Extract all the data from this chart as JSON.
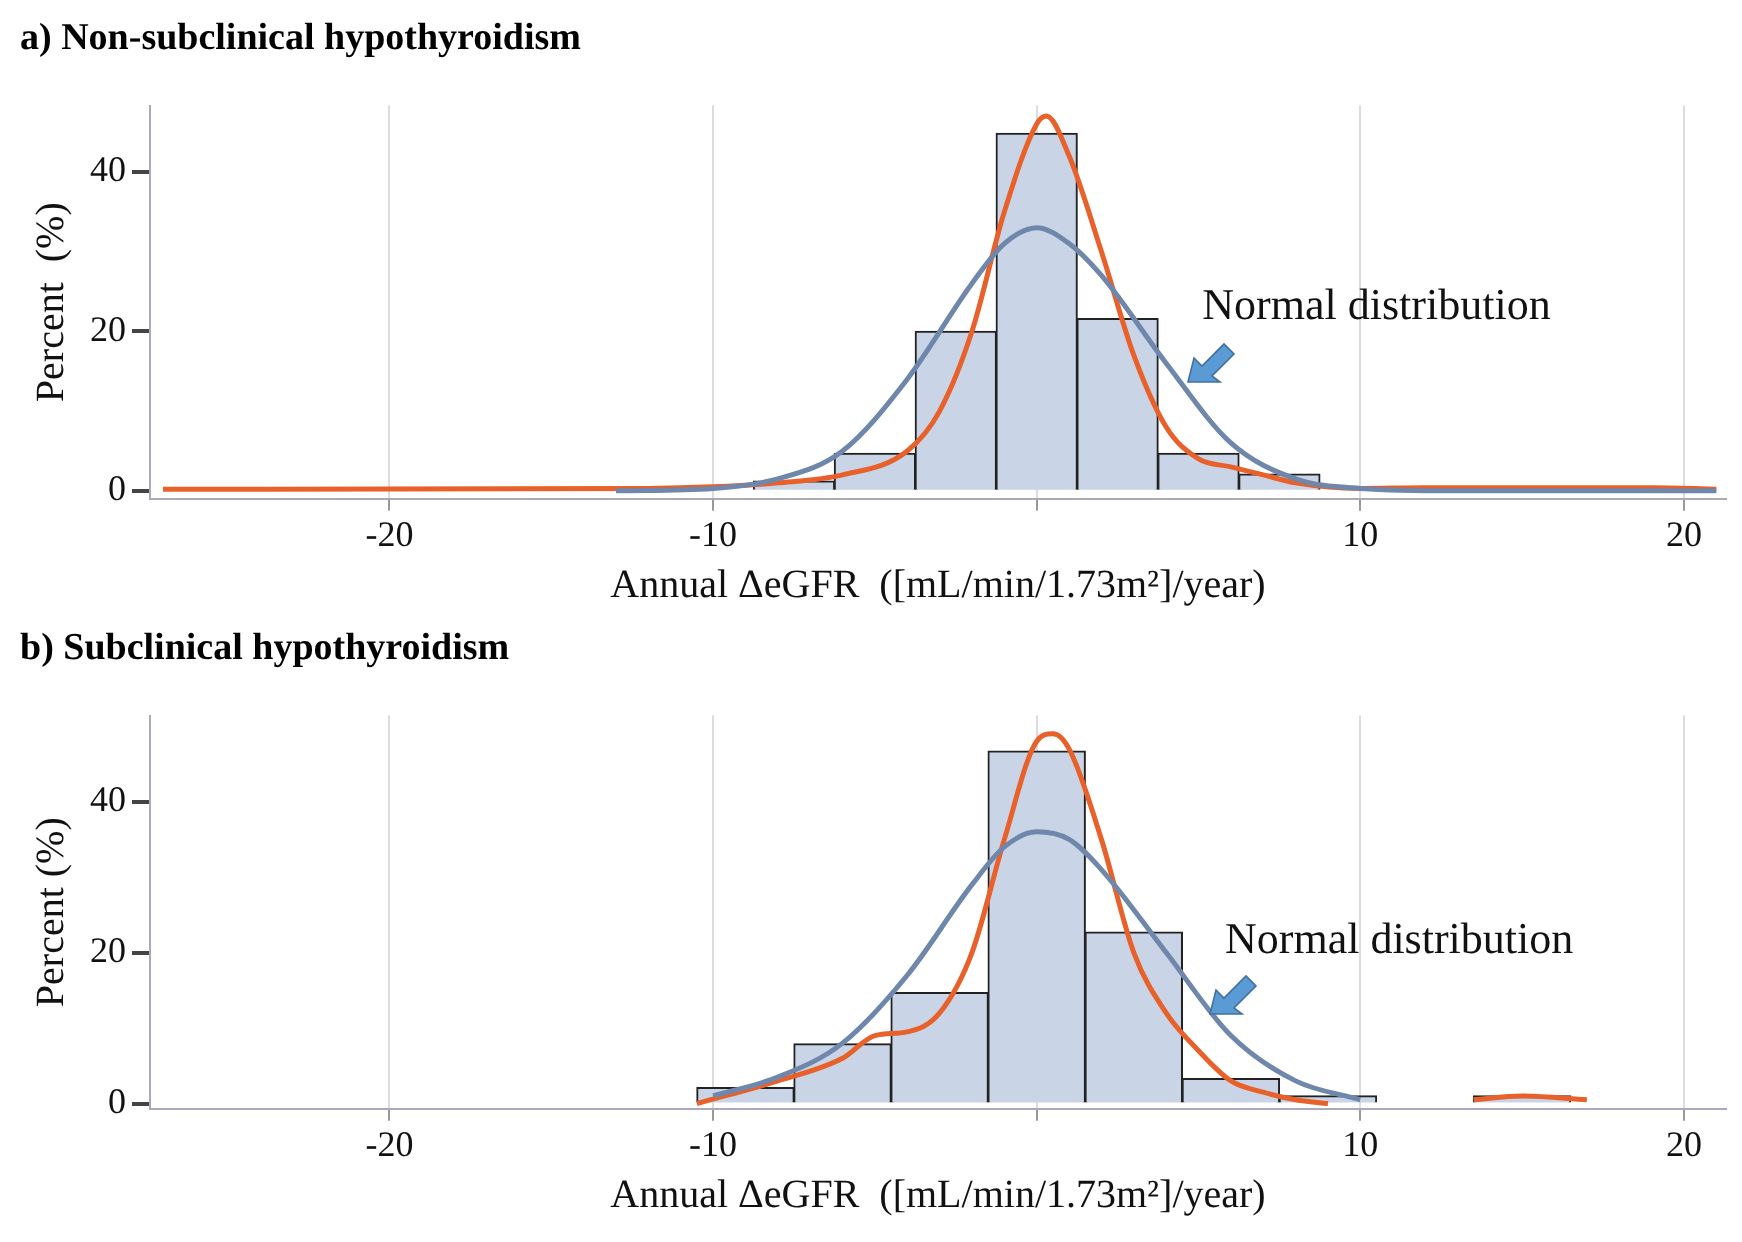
{
  "chart_data": [
    {
      "type": "histogram",
      "title": "a) Non-subclinical hypothyroidism",
      "xlabel": "Annual ΔeGFR  ([mL/min/1.73m²]/year)",
      "ylabel": "Percent  (%)",
      "series": [
        {
          "type": "histogram",
          "color": "#c9d5e6",
          "bins": [
            -13.75,
            -11.25,
            -8.75,
            -6.25,
            -3.75,
            -1.25,
            1.25,
            3.75,
            6.25,
            8.75,
            11.25,
            13.75,
            16.25,
            18.75
          ],
          "values": [
            0.2,
            null,
            1.2,
            4.7,
            20,
            44.8,
            21.6,
            4.7,
            2.1,
            null,
            0.2,
            0,
            0.2
          ]
        },
        {
          "type": "line",
          "color": "#6f87ab",
          "x": [
            -13,
            -10,
            -8,
            -6,
            -4,
            -2,
            -1,
            0,
            1,
            2,
            4,
            6,
            8,
            10,
            13,
            21
          ],
          "values": [
            0,
            0.3,
            1.5,
            5,
            14,
            26,
            31,
            33,
            31,
            27,
            16,
            6,
            1.5,
            0.3,
            0,
            0
          ]
        },
        {
          "type": "line",
          "color": "#e8602a",
          "x": [
            -27,
            -12,
            -10,
            -8,
            -6,
            -4,
            -3,
            -2,
            -1,
            0,
            0.3,
            1,
            2,
            3,
            4,
            5,
            6,
            7,
            8,
            10,
            12,
            16,
            19,
            21
          ],
          "values": [
            0.2,
            0.3,
            0.5,
            1,
            2,
            5,
            10,
            20,
            35,
            46,
            47,
            42,
            30,
            17,
            8,
            4,
            3,
            2,
            1,
            0.3,
            0.4,
            0.4,
            0.4,
            0.2
          ]
        }
      ],
      "xlim": [
        -27.4,
        21.3
      ],
      "xticks": [
        -20,
        -10,
        {
          "value": 0,
          "label": null
        },
        10,
        20
      ],
      "ylim": [
        -1,
        48.3
      ],
      "yticks": [
        0,
        20,
        40
      ],
      "grid": "x",
      "annotations": [
        {
          "text": "Normal distribution",
          "x": 4.5,
          "y": 14
        }
      ]
    },
    {
      "type": "histogram",
      "title": "b) Subclinical hypothyroidism",
      "xlabel": "Annual ΔeGFR  ([mL/min/1.73m²]/year)",
      "ylabel": "Percent (%)",
      "series": [
        {
          "type": "histogram",
          "color": "#c9d5e6",
          "bins": [
            -10.5,
            -7.5,
            -4.5,
            -1.5,
            1.5,
            4.5,
            7.5,
            10.5,
            13.5,
            16.5
          ],
          "values": [
            2.1,
            7.9,
            14.7,
            46.7,
            22.7,
            3.3,
            1,
            0,
            1
          ]
        },
        {
          "type": "line",
          "color": "#6f87ab",
          "x": [
            -10,
            -8,
            -6,
            -4,
            -2,
            -1,
            0,
            1,
            2,
            4,
            6,
            8,
            10
          ],
          "values": [
            1,
            3.5,
            8,
            17,
            29,
            34,
            36,
            35,
            31,
            20,
            9,
            3,
            0.5
          ]
        },
        {
          "type": "line",
          "color": "#e8602a",
          "x": [
            -10.5,
            -8,
            -6,
            -5,
            -4,
            -3,
            -2,
            -1,
            0,
            0.5,
            1,
            2,
            3,
            4,
            5,
            6,
            7,
            8,
            9
          ],
          "values": [
            0,
            3,
            6,
            9,
            9.5,
            12,
            20,
            35,
            48,
            49,
            47,
            35,
            20,
            12,
            7,
            3,
            1.5,
            0.5,
            0
          ]
        },
        {
          "type": "line",
          "color": "#e8602a",
          "x": [
            13.5,
            15,
            17
          ],
          "values": [
            0.5,
            1,
            0.5
          ]
        }
      ],
      "xlim": [
        -27.4,
        21.3
      ],
      "xticks": [
        -20,
        -10,
        {
          "value": 0,
          "label": null
        },
        10,
        20
      ],
      "ylim": [
        -0.7,
        51.4
      ],
      "yticks": [
        0,
        20,
        40
      ],
      "grid": "x",
      "annotations": [
        {
          "text": "Normal distribution",
          "x": 5.2,
          "y": 12
        }
      ]
    }
  ]
}
